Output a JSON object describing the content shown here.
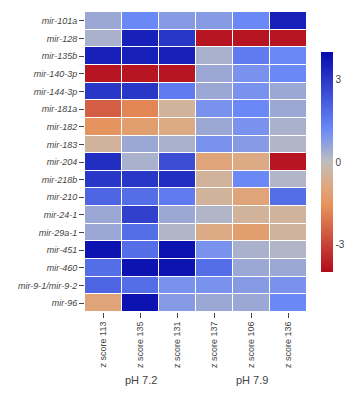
{
  "chart_data": {
    "type": "heatmap",
    "x": [
      "z score 113",
      "z score 135",
      "z score 131",
      "z score 137",
      "z score 106",
      "z score 136"
    ],
    "y": [
      "mir-101a",
      "mir-128",
      "mir-135b",
      "mir-140-3p",
      "mir-144-3p",
      "mir-181a",
      "mir-182",
      "mir-183",
      "mir-204",
      "mir-218b",
      "mir-210",
      "mir-24-1",
      "mir-29a-1",
      "mir-451",
      "mir-460",
      "mir-9-1/mir-9-2",
      "mir-96"
    ],
    "values": [
      [
        0.5,
        1.2,
        0.8,
        0.8,
        1.2,
        3.5
      ],
      [
        0.3,
        3.5,
        3.0,
        -3.8,
        -3.8,
        -3.8
      ],
      [
        3.5,
        3.5,
        3.5,
        0.3,
        1.5,
        1.2
      ],
      [
        -3.8,
        -3.8,
        -3.8,
        0.5,
        1.0,
        1.2
      ],
      [
        3.0,
        3.0,
        1.5,
        0.5,
        1.0,
        0.5
      ],
      [
        -2.5,
        -1.8,
        -0.5,
        1.0,
        1.2,
        0.5
      ],
      [
        -1.5,
        -1.2,
        -0.8,
        0.5,
        1.0,
        0.3
      ],
      [
        -0.5,
        0.5,
        0.3,
        1.0,
        0.8,
        0.2
      ],
      [
        3.2,
        0.3,
        2.5,
        -1.0,
        -0.8,
        -3.8
      ],
      [
        3.0,
        3.0,
        3.2,
        -0.5,
        1.2,
        0.2
      ],
      [
        2.0,
        1.8,
        1.5,
        -0.5,
        -1.0,
        1.8
      ],
      [
        0.5,
        2.8,
        0.5,
        0.2,
        -0.5,
        -0.5
      ],
      [
        0.5,
        1.8,
        0.2,
        -0.8,
        -1.2,
        -0.5
      ],
      [
        3.8,
        1.8,
        3.8,
        1.0,
        0.3,
        0.2
      ],
      [
        1.8,
        3.8,
        3.8,
        1.8,
        0.5,
        0.5
      ],
      [
        2.0,
        1.8,
        1.0,
        1.0,
        0.8,
        1.0
      ],
      [
        -1.0,
        3.8,
        0.8,
        0.5,
        0.5,
        1.2
      ]
    ],
    "colorbar_range": [
      -4,
      4
    ],
    "colorbar_ticks": [
      -3,
      0,
      3
    ],
    "annotations": [
      "pH 7.2",
      "pH 7.9"
    ],
    "grid": false
  }
}
